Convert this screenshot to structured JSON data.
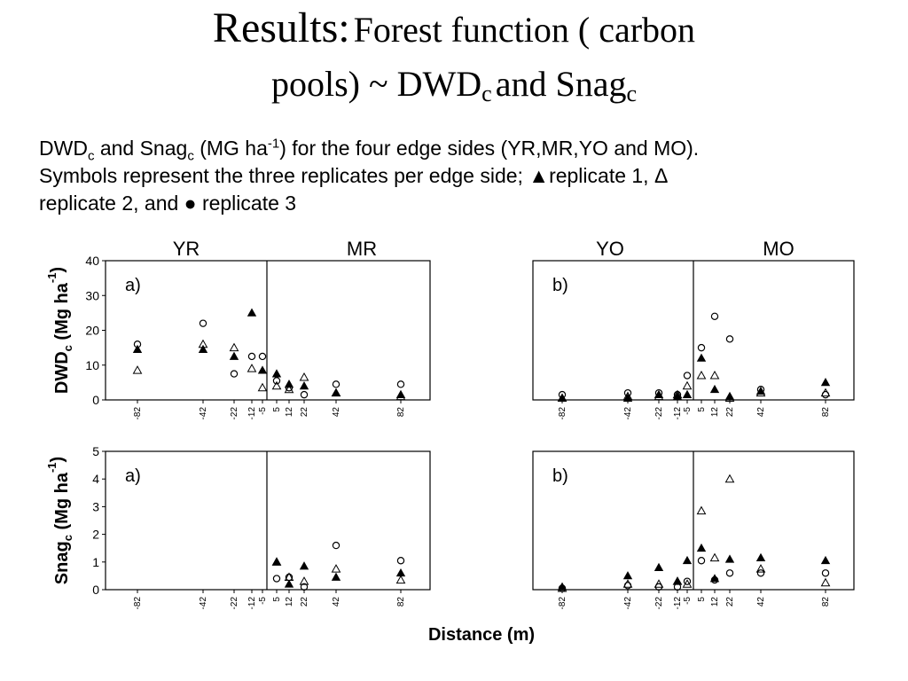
{
  "slide": {
    "title": {
      "part1": "Results:",
      "part2": "Forest function ( carbon",
      "part3": "pools) ~ DWD",
      "sub": "c",
      "part4": "and Snag",
      "sub2": "c"
    },
    "caption": {
      "t1": "DWD",
      "s1": "c",
      "t2": "and Snag",
      "s2": "c",
      "t3": "(MG ha",
      "sup1": "-1",
      "t4": ") for the four edge sides (YR,MR,YO and MO).",
      "line2": "Symbols represent the three replicates per edge side; ▲replicate 1, Δ",
      "line3": "replicate 2, and ● replicate 3"
    },
    "side_labels": [
      "YR",
      "MR",
      "YO",
      "MO"
    ]
  },
  "chart_data": [
    {
      "type": "scatter",
      "panel_label": "a)",
      "ylabel": "DWD",
      "ylabel_sub": "c",
      "ylabel_unit": "(Mg ha",
      "ylabel_sup": "-1",
      "ylabel_close": ")",
      "ylim": [
        0,
        40
      ],
      "yticks": [
        "0",
        "10",
        "20",
        "30",
        "40"
      ],
      "xticks": [
        "-82",
        "-42",
        "-22",
        "-12",
        "-5",
        "5",
        "12",
        "22",
        "42",
        "82"
      ],
      "series": [
        {
          "marker": "filled-triangle",
          "values": [
            14.5,
            14.5,
            12.5,
            25,
            8.5,
            7.5,
            4.5,
            4,
            2,
            1.5
          ]
        },
        {
          "marker": "open-triangle",
          "values": [
            8.5,
            16,
            15,
            9,
            3.5,
            4,
            3,
            6.5,
            2,
            1
          ]
        },
        {
          "marker": "open-circle",
          "values": [
            16,
            22,
            7.5,
            12.5,
            12.5,
            5.5,
            3.5,
            1.5,
            4.5,
            4.5
          ]
        }
      ]
    },
    {
      "type": "scatter",
      "panel_label": "b)",
      "ylim": [
        0,
        40
      ],
      "xticks": [
        "-82",
        "-42",
        "-22",
        "-12",
        "-5",
        "5",
        "12",
        "22",
        "42",
        "82"
      ],
      "series": [
        {
          "marker": "filled-triangle",
          "values": [
            0.5,
            0.5,
            1.5,
            1,
            1.5,
            12,
            3,
            1,
            2.5,
            5
          ]
        },
        {
          "marker": "open-triangle",
          "values": [
            0.5,
            1,
            1,
            1.5,
            4,
            7,
            7,
            0.5,
            2,
            2
          ]
        },
        {
          "marker": "open-circle",
          "values": [
            1.5,
            2,
            2,
            1.5,
            7,
            15,
            24,
            17.5,
            3,
            1.5
          ]
        }
      ]
    },
    {
      "type": "scatter",
      "panel_label": "a)",
      "ylabel": "Snag",
      "ylabel_sub": "c",
      "ylabel_unit": "(Mg ha",
      "ylabel_sup": "-1",
      "ylabel_close": ")",
      "ylim": [
        0,
        5
      ],
      "yticks": [
        "0",
        "1",
        "2",
        "3",
        "4",
        "5"
      ],
      "xticks": [
        "-82",
        "-42",
        "-22",
        "-12",
        "-5",
        "5",
        "12",
        "22",
        "42",
        "82"
      ],
      "series": [
        {
          "marker": "filled-triangle",
          "values": [
            null,
            null,
            null,
            null,
            null,
            1,
            0.2,
            0.85,
            0.45,
            0.6
          ]
        },
        {
          "marker": "open-triangle",
          "values": [
            null,
            null,
            null,
            null,
            null,
            1,
            0.45,
            0.3,
            0.75,
            0.35
          ]
        },
        {
          "marker": "open-circle",
          "values": [
            null,
            null,
            null,
            null,
            null,
            0.4,
            0.45,
            0.1,
            1.6,
            1.05
          ]
        }
      ]
    },
    {
      "type": "scatter",
      "panel_label": "b)",
      "ylim": [
        0,
        5
      ],
      "xticks": [
        "-82",
        "-42",
        "-22",
        "-12",
        "-5",
        "5",
        "12",
        "22",
        "42",
        "82"
      ],
      "series": [
        {
          "marker": "filled-triangle",
          "values": [
            0.1,
            0.5,
            0.8,
            0.3,
            1.05,
            1.5,
            0.4,
            1.1,
            1.15,
            1.05
          ]
        },
        {
          "marker": "open-triangle",
          "values": [
            0.05,
            0.2,
            0.2,
            0.3,
            0.2,
            2.85,
            1.15,
            4,
            0.75,
            0.25
          ]
        },
        {
          "marker": "open-circle",
          "values": [
            0.05,
            0.15,
            0.1,
            0.1,
            0.3,
            1.05,
            0.35,
            0.6,
            0.6,
            0.6
          ]
        }
      ]
    }
  ],
  "xlabel": "Distance (m)"
}
